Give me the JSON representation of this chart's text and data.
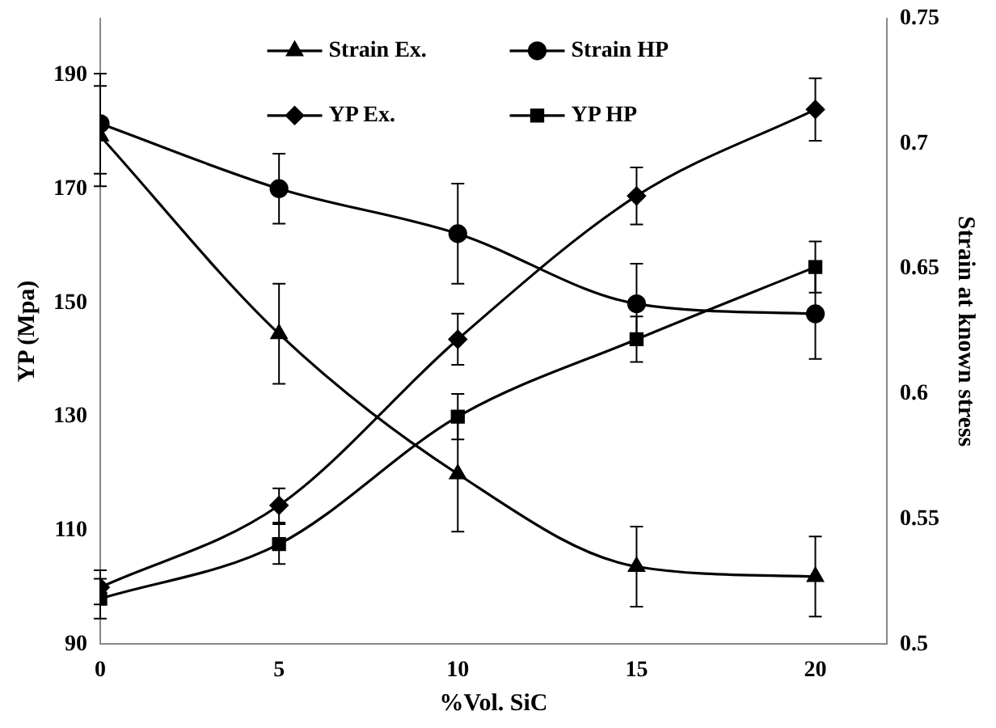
{
  "chart_data": {
    "type": "line",
    "xlabel": "%Vol. SiC",
    "ylabel": "YP (Mpa)",
    "y2label": "Strain at known stress",
    "x": [
      0,
      5,
      10,
      15,
      20
    ],
    "xlim": [
      0,
      22
    ],
    "xticks": [
      0,
      5,
      10,
      15,
      20
    ],
    "ylim": [
      90,
      200
    ],
    "yticks": [
      90,
      110,
      130,
      150,
      170,
      190
    ],
    "y2lim": [
      0.5,
      0.75
    ],
    "y2ticks": [
      0.5,
      0.55,
      0.6,
      0.65,
      0.7,
      0.75
    ],
    "grid": false,
    "legend": "top",
    "line_style": "solid",
    "series": [
      {
        "name": "Strain Ex.",
        "color": "#000000",
        "marker": "triangle",
        "axis": "y2",
        "values": [
          0.703,
          0.624,
          0.568,
          0.531,
          0.527
        ],
        "errors": [
          0.02,
          0.02,
          0.023,
          0.016,
          0.016
        ]
      },
      {
        "name": "Strain HP",
        "color": "#000000",
        "marker": "circle",
        "axis": "y2",
        "values": [
          0.708,
          0.682,
          0.664,
          0.636,
          0.632
        ],
        "errors": [
          0.02,
          0.014,
          0.02,
          0.016,
          0.018
        ]
      },
      {
        "name": "YP Ex.",
        "color": "#000000",
        "marker": "diamond",
        "values": [
          100,
          114.4,
          143.6,
          168.8,
          184
        ],
        "errors": [
          3,
          3,
          4.5,
          5,
          5.5
        ]
      },
      {
        "name": "YP HP",
        "color": "#000000",
        "marker": "square",
        "values": [
          98,
          107.6,
          130,
          143.6,
          156.3
        ],
        "errors": [
          3.5,
          3.5,
          4,
          4,
          4.5
        ]
      }
    ]
  }
}
